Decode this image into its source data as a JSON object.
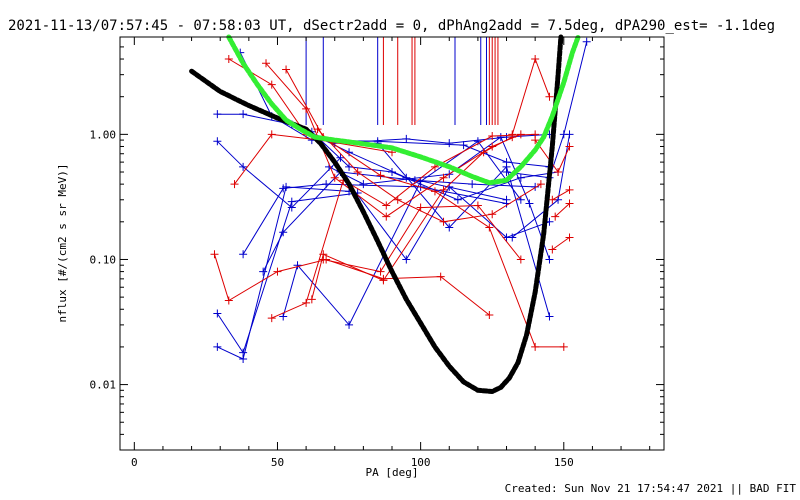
{
  "header": {
    "title": "2021-11-13/07:57:45 - 07:58:03 UT, dSectr2add = 0, dPhAng2add = 7.5deg, dPA290_est= -1.1deg"
  },
  "footer": {
    "created": "Created: Sun Nov 21 17:54:47 2021 || BAD FIT"
  },
  "chart_data": {
    "type": "line",
    "xlabel": "PA [deg]",
    "ylabel": "nflux [#/(cm2 s sr MeV)]",
    "xlim": [
      -5,
      185
    ],
    "ylim": [
      0.003,
      6.0
    ],
    "y_scale": "log",
    "x_ticks": [
      0,
      50,
      100,
      150
    ],
    "x_tick_labels": [
      "0",
      "50",
      "100",
      "150"
    ],
    "y_ticks": [
      0.01,
      0.1,
      1.0
    ],
    "y_tick_labels": [
      "0.01",
      "0.10",
      "1.00"
    ],
    "colors": {
      "blue": "#0000cc",
      "red": "#dd0000",
      "black": "#000000",
      "green": "#33ee33"
    },
    "vertical_markers": {
      "blue": [
        60,
        66,
        85,
        112,
        121,
        123
      ],
      "red": [
        87,
        92,
        97,
        98,
        124,
        125,
        126,
        127
      ]
    },
    "series": [
      {
        "color": "blue",
        "values": [
          [
            29,
            0.02
          ],
          [
            38,
            0.016
          ],
          [
            53,
            0.38
          ],
          [
            75,
            0.35
          ]
        ]
      },
      {
        "color": "blue",
        "values": [
          [
            29,
            0.037
          ],
          [
            38,
            0.018
          ],
          [
            55,
            0.29
          ],
          [
            78,
            0.34
          ]
        ]
      },
      {
        "color": "blue",
        "values": [
          [
            29,
            0.88
          ],
          [
            38,
            0.55
          ],
          [
            55,
            0.26
          ],
          [
            72,
            0.65
          ]
        ]
      },
      {
        "color": "blue",
        "values": [
          [
            29,
            1.45
          ],
          [
            38,
            1.45
          ],
          [
            55,
            1.2
          ],
          [
            75,
            0.72
          ],
          [
            95,
            0.45
          ],
          [
            130,
            0.3
          ]
        ]
      },
      {
        "color": "blue",
        "values": [
          [
            37,
            4.5
          ],
          [
            48,
            1.4
          ],
          [
            62,
            0.9
          ],
          [
            85,
            0.88
          ],
          [
            115,
            0.82
          ],
          [
            130,
            0.6
          ],
          [
            145,
            0.55
          ]
        ]
      },
      {
        "color": "blue",
        "values": [
          [
            38,
            0.11
          ],
          [
            52,
            0.37
          ],
          [
            67,
            0.4
          ],
          [
            100,
            0.38
          ],
          [
            130,
            0.28
          ]
        ]
      },
      {
        "color": "blue",
        "values": [
          [
            45,
            0.08
          ],
          [
            52,
            0.165
          ],
          [
            72,
            0.5
          ],
          [
            98,
            0.43
          ],
          [
            118,
            0.4
          ],
          [
            140,
            0.38
          ]
        ]
      },
      {
        "color": "blue",
        "values": [
          [
            52,
            0.035
          ],
          [
            57,
            0.09
          ],
          [
            75,
            0.03
          ],
          [
            100,
            0.42
          ],
          [
            120,
            0.88
          ],
          [
            135,
            0.3
          ]
        ]
      },
      {
        "color": "blue",
        "values": [
          [
            55,
            1.2
          ],
          [
            70,
            0.85
          ],
          [
            95,
            0.92
          ],
          [
            110,
            0.85
          ],
          [
            130,
            0.95
          ],
          [
            145,
            1.0
          ]
        ]
      },
      {
        "color": "blue",
        "values": [
          [
            62,
            1.05
          ],
          [
            75,
            0.55
          ],
          [
            90,
            0.5
          ],
          [
            113,
            0.3
          ],
          [
            135,
            0.45
          ],
          [
            148,
            0.5
          ]
        ]
      },
      {
        "color": "blue",
        "values": [
          [
            68,
            0.55
          ],
          [
            80,
            0.4
          ],
          [
            110,
            0.48
          ],
          [
            128,
            0.95
          ],
          [
            138,
            0.28
          ],
          [
            145,
            0.1
          ]
        ]
      },
      {
        "color": "blue",
        "values": [
          [
            72,
            0.5
          ],
          [
            95,
            0.1
          ],
          [
            110,
            0.38
          ],
          [
            130,
            0.15
          ],
          [
            145,
            0.2
          ]
        ]
      },
      {
        "color": "blue",
        "values": [
          [
            85,
            0.85
          ],
          [
            110,
            0.18
          ],
          [
            130,
            0.55
          ],
          [
            145,
            0.035
          ]
        ]
      },
      {
        "color": "blue",
        "values": [
          [
            130,
            0.5
          ],
          [
            145,
            0.45
          ],
          [
            150,
            1.0
          ],
          [
            158,
            5.5
          ]
        ]
      },
      {
        "color": "blue",
        "values": [
          [
            132,
            0.15
          ],
          [
            148,
            0.3
          ],
          [
            152,
            1.0
          ]
        ]
      },
      {
        "color": "red",
        "values": [
          [
            33,
            4.0
          ],
          [
            48,
            2.5
          ],
          [
            60,
            1.0
          ]
        ]
      },
      {
        "color": "red",
        "values": [
          [
            35,
            0.4
          ],
          [
            48,
            1.0
          ],
          [
            65,
            0.9
          ],
          [
            90,
            0.72
          ]
        ]
      },
      {
        "color": "red",
        "values": [
          [
            28,
            0.11
          ],
          [
            33,
            0.047
          ],
          [
            50,
            0.08
          ],
          [
            67,
            0.1
          ],
          [
            87,
            0.07
          ],
          [
            107,
            0.073
          ],
          [
            124,
            0.036
          ]
        ]
      },
      {
        "color": "red",
        "values": [
          [
            48,
            0.034
          ],
          [
            60,
            0.045
          ],
          [
            73,
            0.43
          ],
          [
            88,
            0.27
          ],
          [
            105,
            0.55
          ],
          [
            125,
            0.97
          ],
          [
            140,
            1.0
          ]
        ]
      },
      {
        "color": "red",
        "values": [
          [
            62,
            0.048
          ],
          [
            66,
            0.11
          ],
          [
            87,
            0.068
          ],
          [
            108,
            0.36
          ],
          [
            122,
            0.72
          ],
          [
            132,
            0.95
          ]
        ]
      },
      {
        "color": "red",
        "values": [
          [
            53,
            3.3
          ],
          [
            66,
            0.95
          ],
          [
            86,
            0.47
          ],
          [
            105,
            0.35
          ],
          [
            124,
            0.18
          ],
          [
            140,
            0.02
          ],
          [
            150,
            0.02
          ]
        ]
      },
      {
        "color": "red",
        "values": [
          [
            46,
            3.7
          ],
          [
            60,
            1.6
          ],
          [
            70,
            0.45
          ],
          [
            88,
            0.22
          ],
          [
            108,
            0.45
          ],
          [
            125,
            0.8
          ],
          [
            135,
            1.0
          ]
        ]
      },
      {
        "color": "red",
        "values": [
          [
            64,
            1.1
          ],
          [
            78,
            0.5
          ],
          [
            92,
            0.3
          ],
          [
            108,
            0.2
          ],
          [
            125,
            0.23
          ],
          [
            142,
            0.4
          ]
        ]
      },
      {
        "color": "red",
        "values": [
          [
            66,
            0.1
          ],
          [
            86,
            0.08
          ],
          [
            100,
            0.26
          ],
          [
            120,
            0.27
          ],
          [
            135,
            0.1
          ]
        ]
      },
      {
        "color": "red",
        "values": [
          [
            132,
            1.0
          ],
          [
            140,
            4.0
          ],
          [
            145,
            2.0
          ]
        ]
      },
      {
        "color": "red",
        "values": [
          [
            140,
            0.9
          ],
          [
            148,
            0.5
          ],
          [
            152,
            0.8
          ]
        ]
      },
      {
        "color": "red",
        "values": [
          [
            146,
            0.3
          ],
          [
            152,
            0.36
          ]
        ]
      },
      {
        "color": "red",
        "values": [
          [
            146,
            0.12
          ],
          [
            152,
            0.15
          ]
        ]
      },
      {
        "color": "red",
        "values": [
          [
            147,
            0.22
          ],
          [
            152,
            0.28
          ]
        ]
      },
      {
        "color": "black",
        "dashed": true,
        "values": [
          [
            20,
            3.2
          ],
          [
            30,
            2.2
          ],
          [
            40,
            1.7
          ],
          [
            50,
            1.35
          ],
          [
            60,
            1.1
          ],
          [
            65,
            0.85
          ],
          [
            70,
            0.6
          ],
          [
            75,
            0.4
          ],
          [
            80,
            0.24
          ],
          [
            85,
            0.14
          ],
          [
            90,
            0.08
          ],
          [
            95,
            0.048
          ],
          [
            100,
            0.031
          ],
          [
            105,
            0.02
          ],
          [
            110,
            0.014
          ],
          [
            115,
            0.0105
          ],
          [
            120,
            0.009
          ],
          [
            125,
            0.0088
          ],
          [
            128,
            0.0095
          ],
          [
            131,
            0.0113
          ],
          [
            134,
            0.015
          ],
          [
            137,
            0.025
          ],
          [
            140,
            0.055
          ],
          [
            143,
            0.16
          ],
          [
            146,
            0.8
          ],
          [
            148,
            3.0
          ],
          [
            149,
            6.0
          ]
        ]
      },
      {
        "color": "green",
        "dashed": true,
        "values": [
          [
            33,
            6.0
          ],
          [
            38,
            3.7
          ],
          [
            43,
            2.5
          ],
          [
            48,
            1.75
          ],
          [
            53,
            1.3
          ],
          [
            58,
            1.1
          ],
          [
            63,
            0.95
          ],
          [
            70,
            0.9
          ],
          [
            80,
            0.84
          ],
          [
            90,
            0.78
          ],
          [
            100,
            0.66
          ],
          [
            110,
            0.55
          ],
          [
            118,
            0.46
          ],
          [
            124,
            0.41
          ],
          [
            130,
            0.43
          ],
          [
            135,
            0.55
          ],
          [
            140,
            0.75
          ],
          [
            143,
            0.95
          ],
          [
            146,
            1.4
          ],
          [
            150,
            2.6
          ],
          [
            153,
            4.5
          ],
          [
            155,
            6.0
          ]
        ]
      }
    ]
  }
}
